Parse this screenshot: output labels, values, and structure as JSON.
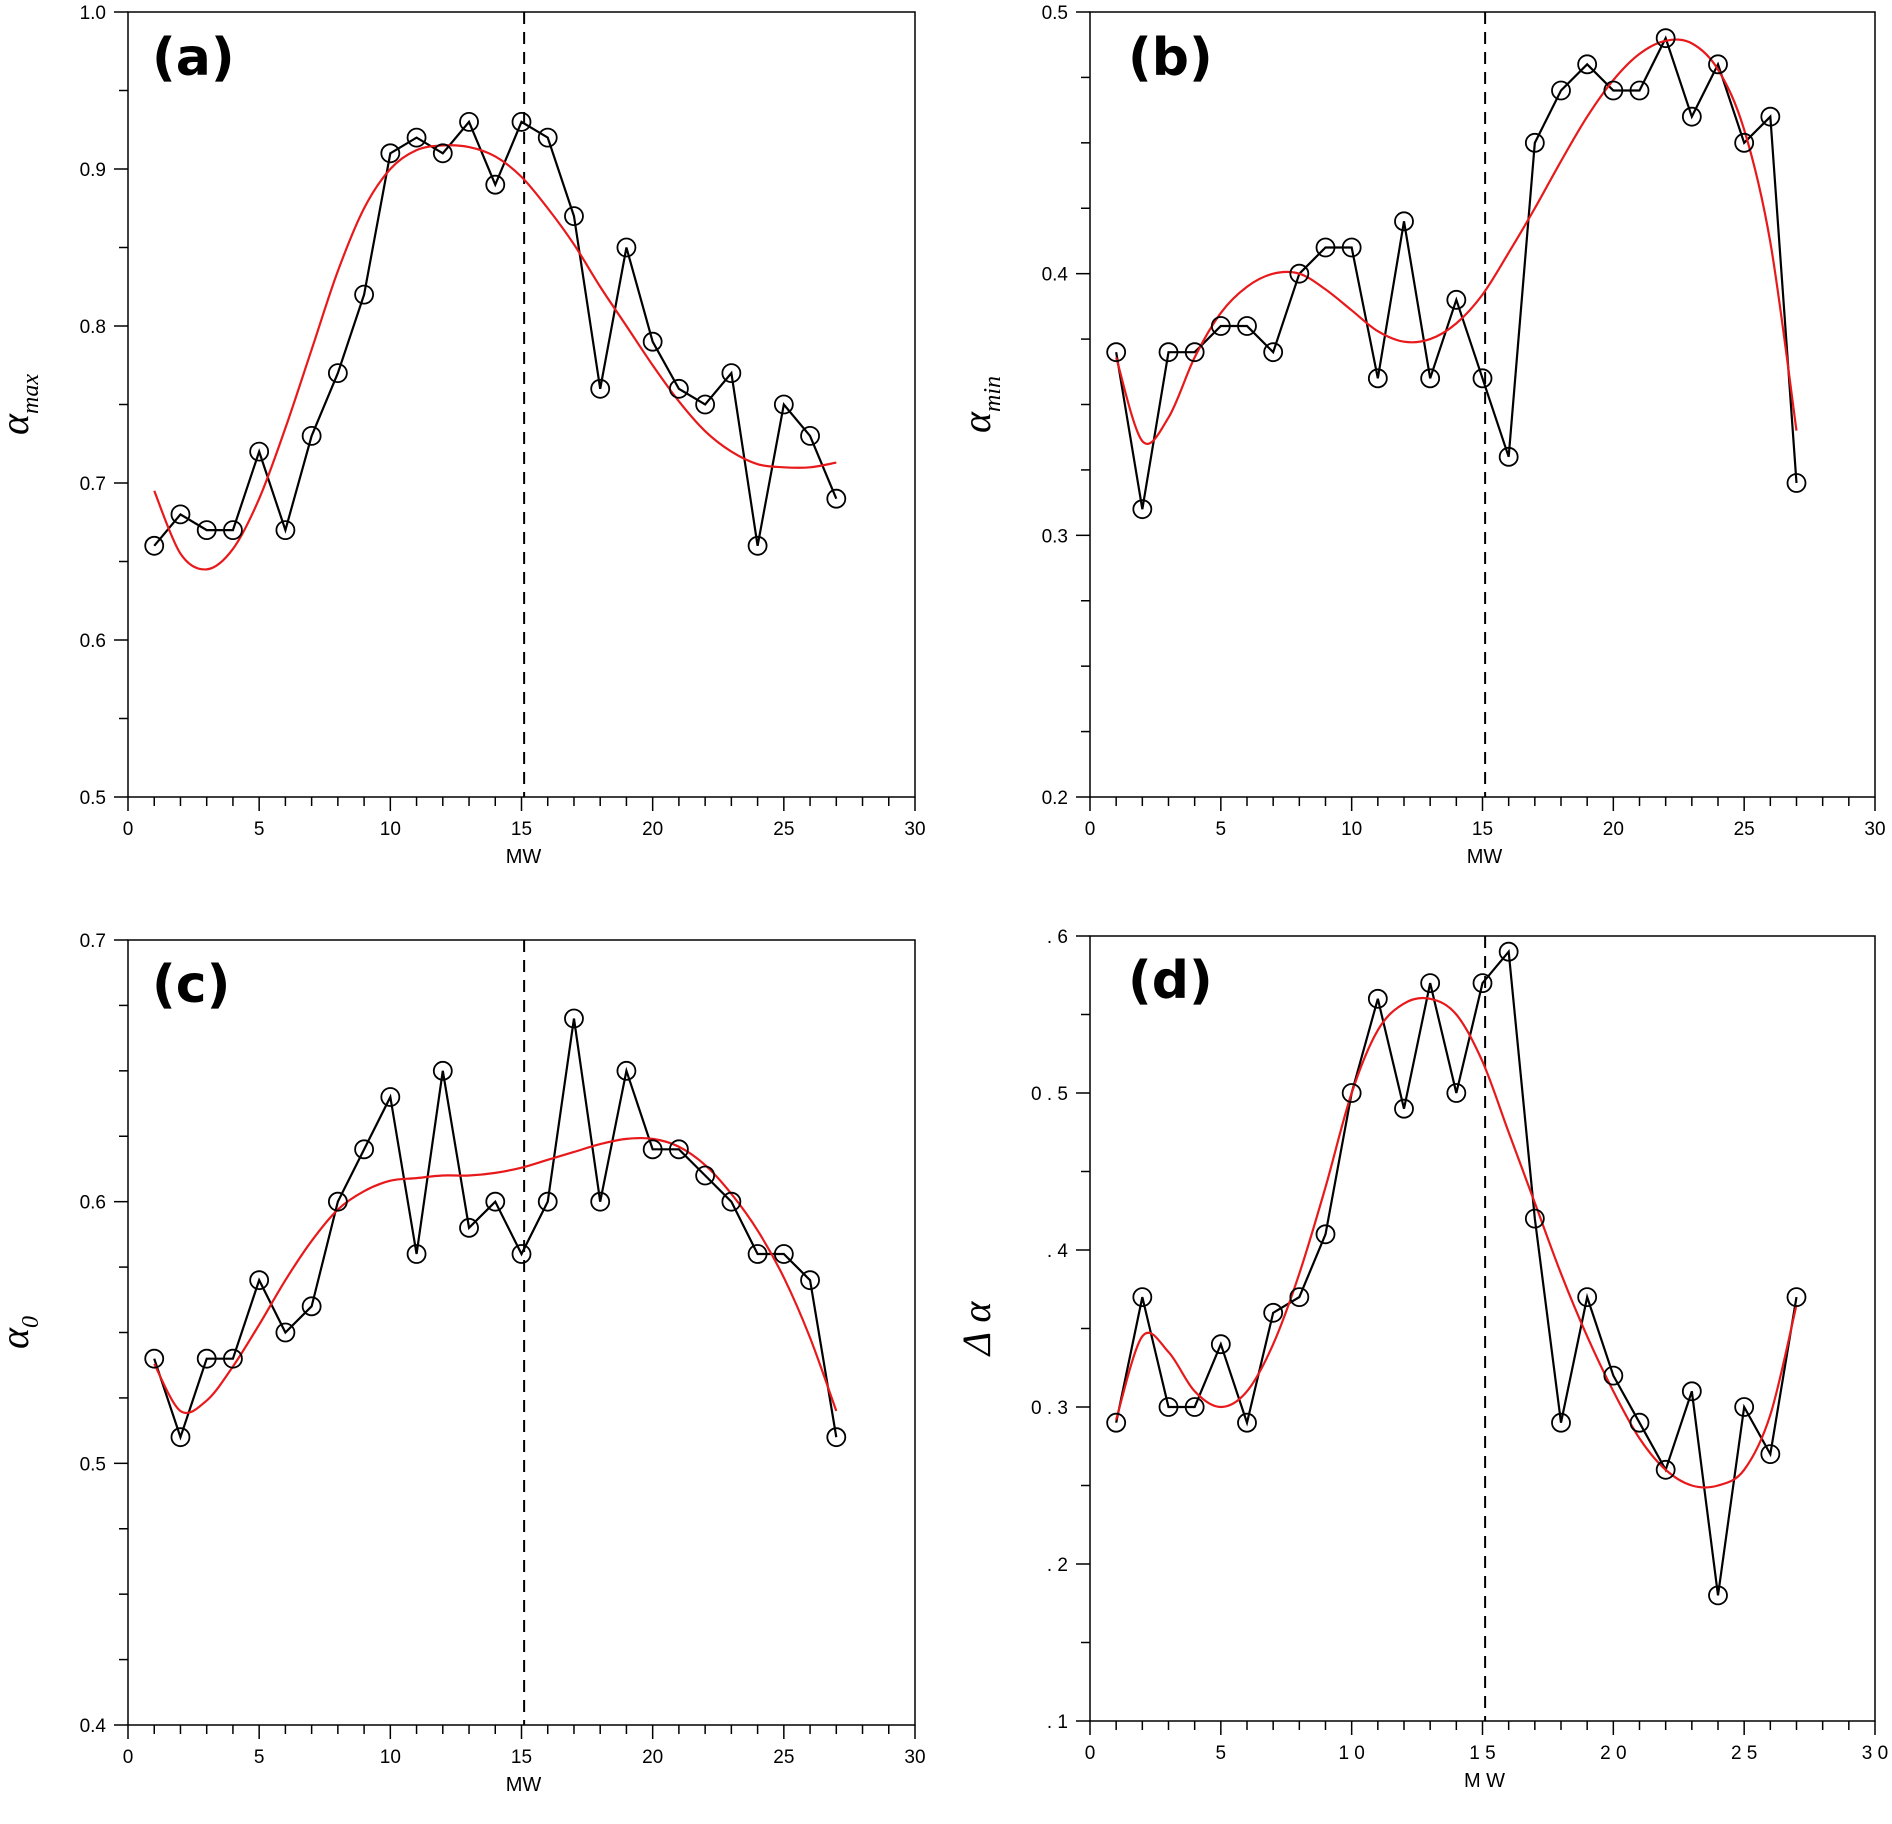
{
  "chart_data": [
    {
      "type": "line",
      "panel_label": "(a)",
      "xlabel": "MW",
      "ylabel": {
        "symbol": "α",
        "subscript": "max"
      },
      "xlim": [
        0,
        30
      ],
      "ylim": [
        0.5,
        1.0
      ],
      "xticks": [
        0,
        5,
        10,
        15,
        20,
        25,
        30
      ],
      "xtick_labels": [
        "0",
        "5",
        "10",
        "15",
        "20",
        "25",
        "30"
      ],
      "yticks": [
        0.5,
        0.6,
        0.7,
        0.8,
        0.9,
        1.0
      ],
      "ytick_labels": [
        "0.5",
        "0.6",
        "0.7",
        "0.8",
        "0.9",
        "1.0"
      ],
      "vline_x": 15.1,
      "series": [
        {
          "kind": "data",
          "color": "#000000",
          "marker": "circle",
          "x": [
            1,
            2,
            3,
            4,
            5,
            6,
            7,
            8,
            9,
            10,
            11,
            12,
            13,
            14,
            15,
            16,
            17,
            18,
            19,
            20,
            21,
            22,
            23,
            24,
            25,
            26,
            27
          ],
          "y": [
            0.66,
            0.68,
            0.67,
            0.67,
            0.72,
            0.67,
            0.73,
            0.77,
            0.82,
            0.91,
            0.92,
            0.91,
            0.93,
            0.89,
            0.93,
            0.92,
            0.87,
            0.76,
            0.85,
            0.79,
            0.76,
            0.75,
            0.77,
            0.66,
            0.75,
            0.73,
            0.69
          ]
        },
        {
          "kind": "fit",
          "color": "#e8191b",
          "x": [
            1,
            2,
            3,
            4,
            5,
            6,
            7,
            8,
            9,
            10,
            11,
            12,
            13,
            14,
            15,
            16,
            17,
            18,
            19,
            20,
            21,
            22,
            23,
            24,
            25,
            26,
            27
          ],
          "y": [
            0.695,
            0.655,
            0.645,
            0.658,
            0.69,
            0.735,
            0.785,
            0.835,
            0.875,
            0.9,
            0.912,
            0.915,
            0.914,
            0.908,
            0.895,
            0.875,
            0.852,
            0.825,
            0.8,
            0.775,
            0.752,
            0.733,
            0.72,
            0.712,
            0.71,
            0.71,
            0.713
          ]
        }
      ]
    },
    {
      "type": "line",
      "panel_label": "(b)",
      "xlabel": "MW",
      "ylabel": {
        "symbol": "α",
        "subscript": "min"
      },
      "xlim": [
        0,
        30
      ],
      "ylim": [
        0.2,
        0.5
      ],
      "xticks": [
        0,
        5,
        10,
        15,
        20,
        25,
        30
      ],
      "xtick_labels": [
        "0",
        "5",
        "10",
        "15",
        "20",
        "25",
        "30"
      ],
      "yticks": [
        0.2,
        0.3,
        0.4,
        0.5
      ],
      "ytick_labels": [
        "0.2",
        "0.3",
        "0.4",
        "0.5"
      ],
      "vline_x": 15.1,
      "series": [
        {
          "kind": "data",
          "color": "#000000",
          "marker": "circle",
          "x": [
            1,
            2,
            3,
            4,
            5,
            6,
            7,
            8,
            9,
            10,
            11,
            12,
            13,
            14,
            15,
            16,
            17,
            18,
            19,
            20,
            21,
            22,
            23,
            24,
            25,
            26,
            27
          ],
          "y": [
            0.37,
            0.31,
            0.37,
            0.37,
            0.38,
            0.38,
            0.37,
            0.4,
            0.41,
            0.41,
            0.36,
            0.42,
            0.36,
            0.39,
            0.36,
            0.33,
            0.45,
            0.47,
            0.48,
            0.47,
            0.47,
            0.49,
            0.46,
            0.48,
            0.45,
            0.46,
            0.32
          ]
        },
        {
          "kind": "fit",
          "color": "#e8191b",
          "x": [
            1,
            2,
            3,
            4,
            5,
            6,
            7,
            8,
            9,
            10,
            11,
            12,
            13,
            14,
            15,
            16,
            17,
            18,
            19,
            20,
            21,
            22,
            23,
            24,
            25,
            26,
            27
          ],
          "y": [
            0.368,
            0.336,
            0.345,
            0.368,
            0.385,
            0.395,
            0.4,
            0.4,
            0.394,
            0.386,
            0.378,
            0.374,
            0.375,
            0.381,
            0.392,
            0.408,
            0.425,
            0.443,
            0.46,
            0.474,
            0.484,
            0.489,
            0.488,
            0.478,
            0.455,
            0.412,
            0.34
          ]
        }
      ]
    },
    {
      "type": "line",
      "panel_label": "(c)",
      "xlabel": "MW",
      "ylabel": {
        "symbol": "α",
        "subscript": "0"
      },
      "xlim": [
        0,
        30
      ],
      "ylim": [
        0.4,
        0.7
      ],
      "xticks": [
        0,
        5,
        10,
        15,
        20,
        25,
        30
      ],
      "xtick_labels": [
        "0",
        "5",
        "10",
        "15",
        "20",
        "25",
        "30"
      ],
      "yticks": [
        0.4,
        0.5,
        0.6,
        0.7
      ],
      "ytick_labels": [
        "0.4",
        "0.5",
        "0.6",
        "0.7"
      ],
      "vline_x": 15.1,
      "series": [
        {
          "kind": "data",
          "color": "#000000",
          "marker": "circle",
          "x": [
            1,
            2,
            3,
            4,
            5,
            6,
            7,
            8,
            9,
            10,
            11,
            12,
            13,
            14,
            15,
            16,
            17,
            18,
            19,
            20,
            21,
            22,
            23,
            24,
            25,
            26,
            27
          ],
          "y": [
            0.54,
            0.51,
            0.54,
            0.54,
            0.57,
            0.55,
            0.56,
            0.6,
            0.62,
            0.64,
            0.58,
            0.65,
            0.59,
            0.6,
            0.58,
            0.6,
            0.67,
            0.6,
            0.65,
            0.62,
            0.62,
            0.61,
            0.6,
            0.58,
            0.58,
            0.57,
            0.51
          ]
        },
        {
          "kind": "fit",
          "color": "#e8191b",
          "x": [
            1,
            2,
            3,
            4,
            5,
            6,
            7,
            8,
            9,
            10,
            11,
            12,
            13,
            14,
            15,
            16,
            17,
            18,
            19,
            20,
            21,
            22,
            23,
            24,
            25,
            26,
            27
          ],
          "y": [
            0.538,
            0.52,
            0.524,
            0.537,
            0.553,
            0.57,
            0.585,
            0.597,
            0.604,
            0.608,
            0.609,
            0.61,
            0.61,
            0.611,
            0.613,
            0.616,
            0.619,
            0.622,
            0.624,
            0.624,
            0.621,
            0.614,
            0.603,
            0.589,
            0.571,
            0.548,
            0.52
          ]
        }
      ]
    },
    {
      "type": "line",
      "panel_label": "(d)",
      "xlabel": "M W",
      "ylabel": {
        "symbol": "Δ α",
        "subscript": ""
      },
      "xlim": [
        0,
        30
      ],
      "ylim": [
        0.1,
        0.6
      ],
      "xticks": [
        0,
        5,
        10,
        15,
        20,
        25,
        30
      ],
      "xtick_labels": [
        "0",
        "5",
        "1 0",
        "1 5",
        "2 0",
        "2 5",
        "3 0"
      ],
      "yticks": [
        0.1,
        0.2,
        0.3,
        0.4,
        0.5,
        0.6
      ],
      "ytick_labels": [
        ". 1",
        ". 2",
        "0 . 3",
        ". 4",
        "0 . 5",
        ". 6"
      ],
      "vline_x": 15.1,
      "series": [
        {
          "kind": "data",
          "color": "#000000",
          "marker": "circle",
          "x": [
            1,
            2,
            3,
            4,
            5,
            6,
            7,
            8,
            9,
            10,
            11,
            12,
            13,
            14,
            15,
            16,
            17,
            18,
            19,
            20,
            21,
            22,
            23,
            24,
            25,
            26,
            27
          ],
          "y": [
            0.29,
            0.37,
            0.3,
            0.3,
            0.34,
            0.29,
            0.36,
            0.37,
            0.41,
            0.5,
            0.56,
            0.49,
            0.57,
            0.5,
            0.57,
            0.59,
            0.42,
            0.29,
            0.37,
            0.32,
            0.29,
            0.26,
            0.31,
            0.18,
            0.3,
            0.27,
            0.37
          ]
        },
        {
          "kind": "fit",
          "color": "#e8191b",
          "x": [
            1,
            2,
            3,
            4,
            5,
            6,
            7,
            8,
            9,
            10,
            11,
            12,
            13,
            14,
            15,
            16,
            17,
            18,
            19,
            20,
            21,
            22,
            23,
            24,
            25,
            26,
            27
          ],
          "y": [
            0.292,
            0.345,
            0.335,
            0.31,
            0.3,
            0.31,
            0.34,
            0.385,
            0.44,
            0.5,
            0.54,
            0.557,
            0.56,
            0.55,
            0.52,
            0.475,
            0.43,
            0.385,
            0.345,
            0.31,
            0.28,
            0.26,
            0.25,
            0.25,
            0.26,
            0.295,
            0.365
          ]
        }
      ]
    }
  ]
}
